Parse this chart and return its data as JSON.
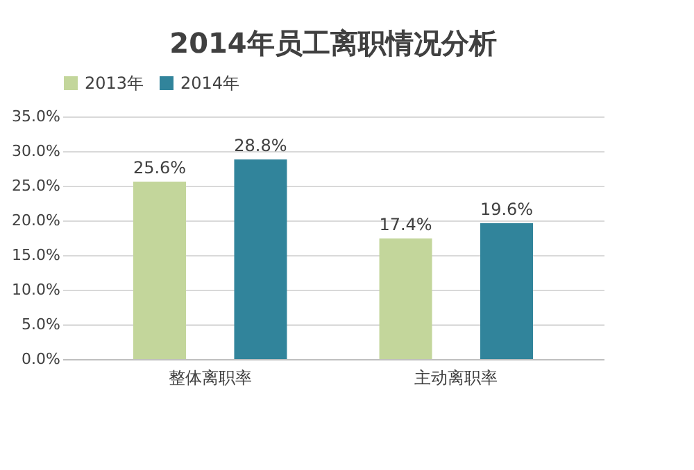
{
  "chart_data": {
    "type": "bar",
    "title": "2014年员工离职情况分析",
    "categories": [
      "整体离职率",
      "主动离职率"
    ],
    "series": [
      {
        "name": "2013年",
        "color": "#c3d69b",
        "values": [
          25.6,
          17.4
        ],
        "value_labels": [
          "25.6%",
          "17.4%"
        ]
      },
      {
        "name": "2014年",
        "color": "#31849b",
        "values": [
          28.8,
          19.6
        ],
        "value_labels": [
          "28.8%",
          "19.6%"
        ]
      }
    ],
    "ylim": [
      0,
      35
    ],
    "yticks": [
      {
        "value": 0,
        "label": "0.0%"
      },
      {
        "value": 5,
        "label": "5.0%"
      },
      {
        "value": 10,
        "label": "10.0%"
      },
      {
        "value": 15,
        "label": "15.0%"
      },
      {
        "value": 20,
        "label": "20.0%"
      },
      {
        "value": 25,
        "label": "25.0%"
      },
      {
        "value": 30,
        "label": "30.0%"
      },
      {
        "value": 35,
        "label": "35.0%"
      }
    ],
    "grid": "y",
    "legend": "top"
  }
}
